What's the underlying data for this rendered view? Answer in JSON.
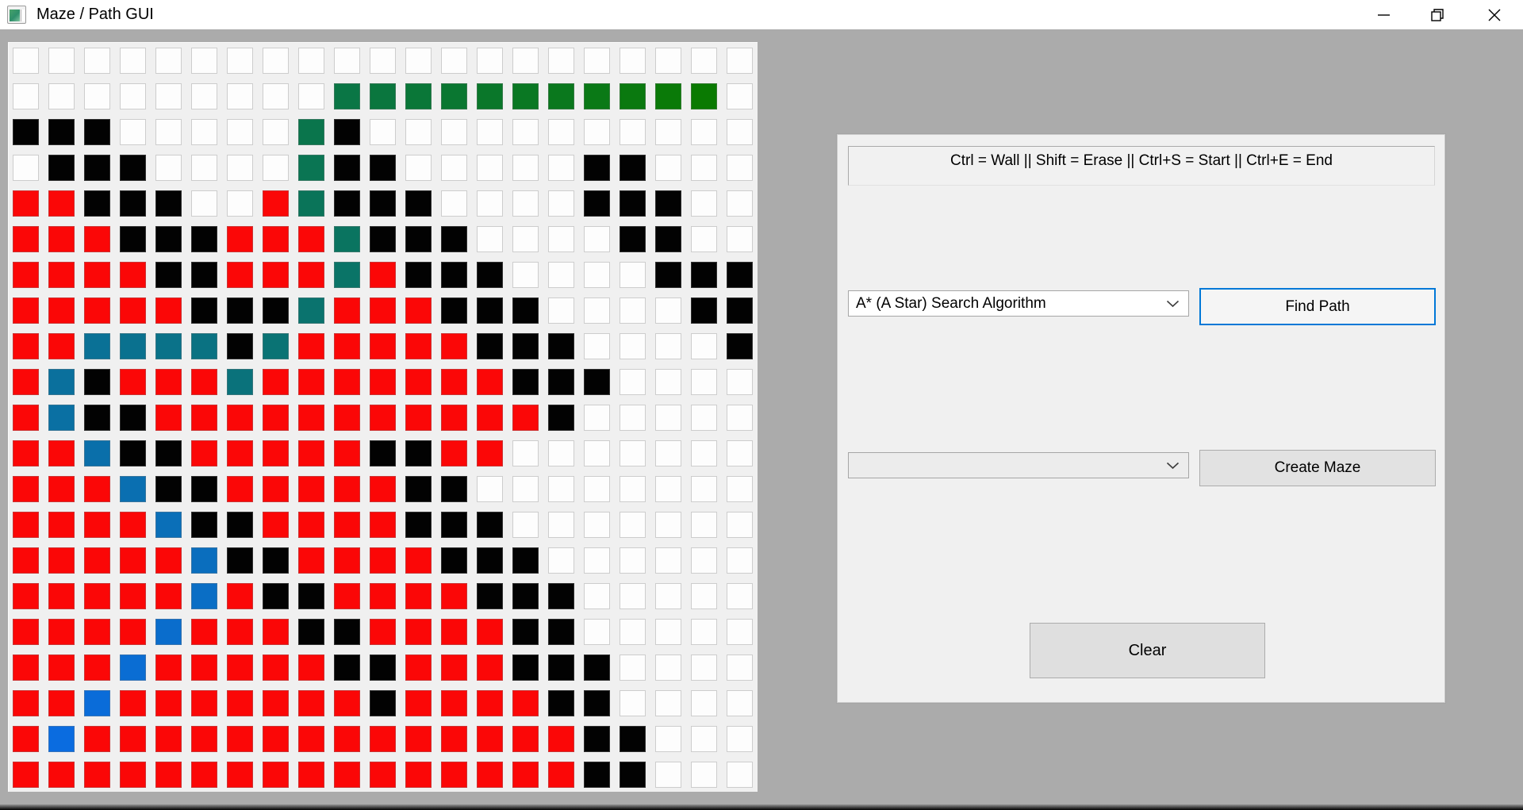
{
  "window": {
    "title": "Maze / Path GUI",
    "controls": {
      "minimize": "minimize",
      "restore": "restore",
      "close": "close"
    }
  },
  "maze": {
    "grid_size": {
      "rows": 21,
      "cols": 21
    },
    "cell_colors": {
      "W": "#FDFDFD",
      "K": "#020202",
      "R": "#FB0707",
      "P": "#0A7374"
    },
    "rows": [
      "WWWWWWWWWWWWWWWWWWWWW",
      "WWWWWWWWWPPPPPPPPPPPW",
      "KKKWWWWWPKWWWWWWWWWWW",
      "WKKKWWWWPKKWWWWWKKWWW",
      "RRKKKWWRPKKKWWWWKKKWW",
      "RRRKKKRRRPKKKWWWWKKWW",
      "RRRRKKRRRPRKKKWWWWKKK",
      "RRRRRKKKPRRRKKKWWWWKK",
      "RRPPPPKPRRRRRKKKWWWWK",
      "RPKRRRPRRRRRRRKKKWWWW",
      "RPKKRRRRRRRRRRRKWWWWW",
      "RRPKKRRRRRKKRRWWWWWWW",
      "RRRPKKRRRRRKKWWWWWWWW",
      "RRRRPKKRRRRKKKWWWWWWW",
      "RRRRRPKKRRRRKKKWWWWWW",
      "RRRRRPRKKRRRRKKKWWWWW",
      "RRRRPRRRKKRRRRKKWWWWW",
      "RRRPRRRRRKKRRRKKKWWWW",
      "RRPRRRRRRRKRRRRKKWWWW",
      "RPRRRRRRRRRRRRRRKKWWW",
      "RRRRRRRRRRRRRRRRKKWWW"
    ],
    "path": [
      {
        "r": 19,
        "c": 1,
        "color": "#0A6CE0"
      },
      {
        "r": 18,
        "c": 2,
        "color": "#0A6CD9"
      },
      {
        "r": 17,
        "c": 3,
        "color": "#0A6DD3"
      },
      {
        "r": 16,
        "c": 4,
        "color": "#0A6DCC"
      },
      {
        "r": 15,
        "c": 5,
        "color": "#0A6EC5"
      },
      {
        "r": 14,
        "c": 5,
        "color": "#0A6EBE"
      },
      {
        "r": 13,
        "c": 4,
        "color": "#0A6FB8"
      },
      {
        "r": 12,
        "c": 3,
        "color": "#0A6FB1"
      },
      {
        "r": 11,
        "c": 2,
        "color": "#0A6FAA"
      },
      {
        "r": 10,
        "c": 1,
        "color": "#0A70A3"
      },
      {
        "r": 9,
        "c": 1,
        "color": "#0A709D"
      },
      {
        "r": 8,
        "c": 2,
        "color": "#0A7196"
      },
      {
        "r": 8,
        "c": 3,
        "color": "#0A718F"
      },
      {
        "r": 8,
        "c": 4,
        "color": "#0A7289"
      },
      {
        "r": 8,
        "c": 5,
        "color": "#0A7282"
      },
      {
        "r": 9,
        "c": 6,
        "color": "#0A727B"
      },
      {
        "r": 8,
        "c": 7,
        "color": "#0A7374"
      },
      {
        "r": 7,
        "c": 8,
        "color": "#0A736E"
      },
      {
        "r": 6,
        "c": 9,
        "color": "#0A7467"
      },
      {
        "r": 5,
        "c": 9,
        "color": "#0A7460"
      },
      {
        "r": 4,
        "c": 8,
        "color": "#0A7459"
      },
      {
        "r": 3,
        "c": 8,
        "color": "#0A7553"
      },
      {
        "r": 2,
        "c": 8,
        "color": "#0A754C"
      },
      {
        "r": 1,
        "c": 9,
        "color": "#0A7645"
      },
      {
        "r": 1,
        "c": 10,
        "color": "#0A763E"
      },
      {
        "r": 1,
        "c": 11,
        "color": "#0A7738"
      },
      {
        "r": 1,
        "c": 12,
        "color": "#0A7731"
      },
      {
        "r": 1,
        "c": 13,
        "color": "#0A772A"
      },
      {
        "r": 1,
        "c": 14,
        "color": "#0A7823"
      },
      {
        "r": 1,
        "c": 15,
        "color": "#0A781D"
      },
      {
        "r": 1,
        "c": 16,
        "color": "#0A7916"
      },
      {
        "r": 1,
        "c": 17,
        "color": "#0A790F"
      },
      {
        "r": 1,
        "c": 18,
        "color": "#0A7A08"
      },
      {
        "r": 1,
        "c": 19,
        "color": "#0A7A02"
      }
    ]
  },
  "panel": {
    "instructions": "Ctrl = Wall || Shift = Erase || Ctrl+S = Start || Ctrl+E = End",
    "algorithm_dropdown": {
      "value": "A* (A Star) Search Algorithm"
    },
    "find_path_button": "Find Path",
    "maze_dropdown": {
      "value": ""
    },
    "create_maze_button": "Create Maze",
    "clear_button": "Clear"
  },
  "colors": {
    "accent_focus": "#0078D7",
    "desktop_gray": "#ABABAB",
    "canvas_bg": "#F0F0F0",
    "panel_bg": "#F0F0F0",
    "titlebar_bg": "#FFFFFF"
  }
}
